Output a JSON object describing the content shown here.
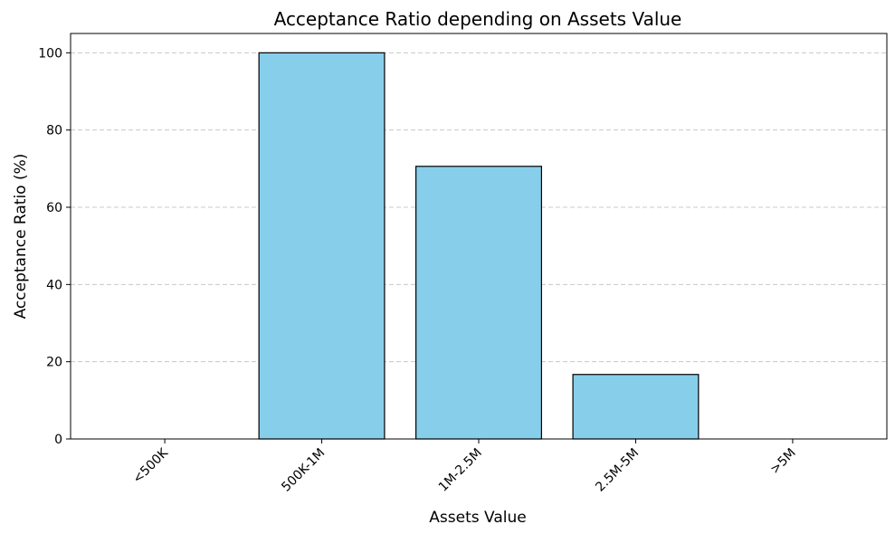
{
  "chart_data": {
    "type": "bar",
    "title": "Acceptance Ratio depending on Assets Value",
    "xlabel": "Assets Value",
    "ylabel": "Acceptance Ratio (%)",
    "categories": [
      "<500K",
      "500K-1M",
      "1M-2.5M",
      "2.5M-5M",
      ">5M"
    ],
    "values": [
      0,
      100,
      70.6,
      16.7,
      0
    ],
    "ylim": [
      0,
      105
    ],
    "yticks": [
      0,
      20,
      40,
      60,
      80,
      100
    ],
    "grid": "y-dashed",
    "bar_color": "#87ceeb",
    "edge_color": "#000000",
    "x_tick_rotation": 45
  }
}
